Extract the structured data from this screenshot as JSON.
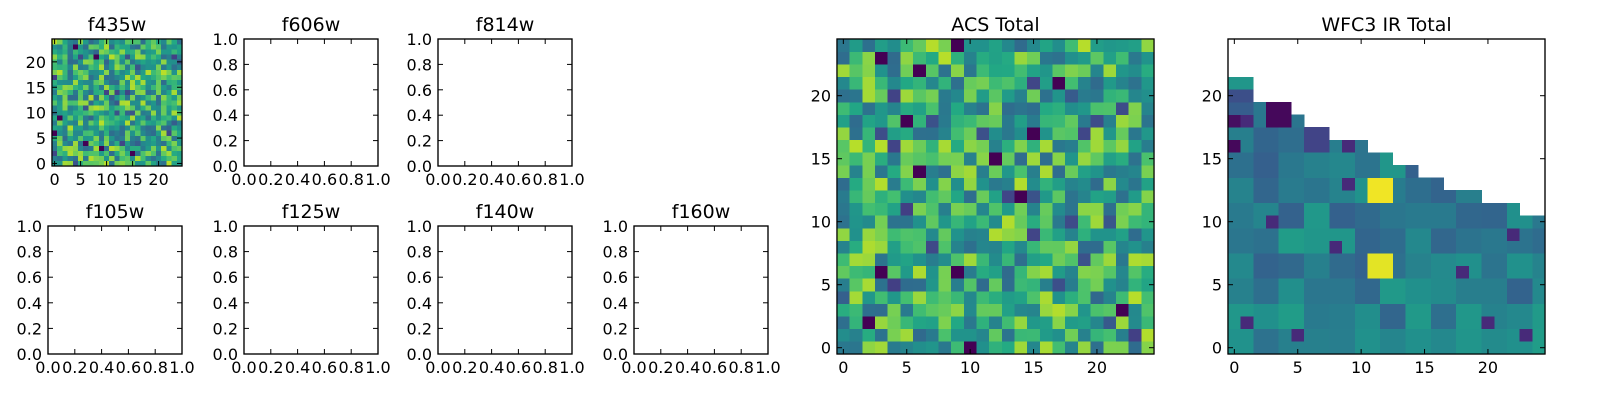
{
  "figure": {
    "colormap": "viridis",
    "colors": {
      "background": "#ffffff",
      "frame": "#000000",
      "cmap_low": "#440154",
      "cmap_mid": "#21908d",
      "cmap_high": "#fde725"
    }
  },
  "chart_data": [
    {
      "id": "f435w",
      "type": "heatmap",
      "title": "f435w",
      "xlabel": "",
      "ylabel": "",
      "xlim": [
        -0.5,
        24.5
      ],
      "ylim": [
        -0.5,
        24.5
      ],
      "grid": false,
      "xticks": [
        0,
        5,
        10,
        15,
        20
      ],
      "yticks": [
        0,
        5,
        10,
        15,
        20
      ],
      "xtick_labels": [
        "0",
        "5",
        "10",
        "15",
        "20"
      ],
      "ytick_labels": [
        "0",
        "5",
        "10",
        "15",
        "20"
      ],
      "value_range": [
        0,
        1
      ],
      "shape": [
        25,
        25
      ],
      "seed": 4351,
      "pattern": "noise",
      "cmap": "viridis"
    },
    {
      "id": "f606w",
      "type": "empty",
      "title": "f606w",
      "xlim": [
        0,
        1
      ],
      "ylim": [
        0,
        1
      ],
      "grid": false,
      "xticks": [
        0,
        0.2,
        0.4,
        0.6,
        0.8,
        1.0
      ],
      "yticks": [
        0,
        0.2,
        0.4,
        0.6,
        0.8,
        1.0
      ],
      "xtick_labels": [
        "0.0",
        "0.2",
        "0.4",
        "0.6",
        "0.8",
        "1.0"
      ],
      "ytick_labels": [
        "0.0",
        "0.2",
        "0.4",
        "0.6",
        "0.8",
        "1.0"
      ]
    },
    {
      "id": "f814w",
      "type": "empty",
      "title": "f814w",
      "xlim": [
        0,
        1
      ],
      "ylim": [
        0,
        1
      ],
      "grid": false,
      "xticks": [
        0,
        0.2,
        0.4,
        0.6,
        0.8,
        1.0
      ],
      "yticks": [
        0,
        0.2,
        0.4,
        0.6,
        0.8,
        1.0
      ],
      "xtick_labels": [
        "0.0",
        "0.2",
        "0.4",
        "0.6",
        "0.8",
        "1.0"
      ],
      "ytick_labels": [
        "0.0",
        "0.2",
        "0.4",
        "0.6",
        "0.8",
        "1.0"
      ]
    },
    {
      "id": "f105w",
      "type": "empty",
      "title": "f105w",
      "xlim": [
        0,
        1
      ],
      "ylim": [
        0,
        1
      ],
      "grid": false,
      "xticks": [
        0,
        0.2,
        0.4,
        0.6,
        0.8,
        1.0
      ],
      "yticks": [
        0,
        0.2,
        0.4,
        0.6,
        0.8,
        1.0
      ],
      "xtick_labels": [
        "0.0",
        "0.2",
        "0.4",
        "0.6",
        "0.8",
        "1.0"
      ],
      "ytick_labels": [
        "0.0",
        "0.2",
        "0.4",
        "0.6",
        "0.8",
        "1.0"
      ]
    },
    {
      "id": "f125w",
      "type": "empty",
      "title": "f125w",
      "xlim": [
        0,
        1
      ],
      "ylim": [
        0,
        1
      ],
      "grid": false,
      "xticks": [
        0,
        0.2,
        0.4,
        0.6,
        0.8,
        1.0
      ],
      "yticks": [
        0,
        0.2,
        0.4,
        0.6,
        0.8,
        1.0
      ],
      "xtick_labels": [
        "0.0",
        "0.2",
        "0.4",
        "0.6",
        "0.8",
        "1.0"
      ],
      "ytick_labels": [
        "0.0",
        "0.2",
        "0.4",
        "0.6",
        "0.8",
        "1.0"
      ]
    },
    {
      "id": "f140w",
      "type": "empty",
      "title": "f140w",
      "xlim": [
        0,
        1
      ],
      "ylim": [
        0,
        1
      ],
      "grid": false,
      "xticks": [
        0,
        0.2,
        0.4,
        0.6,
        0.8,
        1.0
      ],
      "yticks": [
        0,
        0.2,
        0.4,
        0.6,
        0.8,
        1.0
      ],
      "xtick_labels": [
        "0.0",
        "0.2",
        "0.4",
        "0.6",
        "0.8",
        "1.0"
      ],
      "ytick_labels": [
        "0.0",
        "0.2",
        "0.4",
        "0.6",
        "0.8",
        "1.0"
      ]
    },
    {
      "id": "f160w",
      "type": "empty",
      "title": "f160w",
      "xlim": [
        0,
        1
      ],
      "ylim": [
        0,
        1
      ],
      "grid": false,
      "xticks": [
        0,
        0.2,
        0.4,
        0.6,
        0.8,
        1.0
      ],
      "yticks": [
        0,
        0.2,
        0.4,
        0.6,
        0.8,
        1.0
      ],
      "xtick_labels": [
        "0.0",
        "0.2",
        "0.4",
        "0.6",
        "0.8",
        "1.0"
      ],
      "ytick_labels": [
        "0.0",
        "0.2",
        "0.4",
        "0.6",
        "0.8",
        "1.0"
      ]
    },
    {
      "id": "acs-total",
      "type": "heatmap",
      "title": "ACS Total",
      "xlabel": "",
      "ylabel": "",
      "xlim": [
        -0.5,
        24.5
      ],
      "ylim": [
        -0.5,
        24.5
      ],
      "grid": false,
      "xticks": [
        0,
        5,
        10,
        15,
        20
      ],
      "yticks": [
        0,
        5,
        10,
        15,
        20
      ],
      "xtick_labels": [
        "0",
        "5",
        "10",
        "15",
        "20"
      ],
      "ytick_labels": [
        "0",
        "5",
        "10",
        "15",
        "20"
      ],
      "value_range": [
        0,
        1
      ],
      "shape": [
        25,
        25
      ],
      "seed": 4352,
      "pattern": "noise",
      "cmap": "viridis"
    },
    {
      "id": "wfc3-ir-total",
      "type": "heatmap",
      "title": "WFC3 IR Total",
      "xlabel": "",
      "ylabel": "",
      "xlim": [
        -0.5,
        24.5
      ],
      "ylim": [
        -0.5,
        24.5
      ],
      "grid": false,
      "xticks": [
        0,
        5,
        10,
        15,
        20
      ],
      "yticks": [
        0,
        5,
        10,
        15,
        20
      ],
      "xtick_labels": [
        "0",
        "5",
        "10",
        "15",
        "20"
      ],
      "ytick_labels": [
        "0",
        "5",
        "10",
        "15",
        "20"
      ],
      "value_range": [
        0,
        1
      ],
      "shape": [
        25,
        25
      ],
      "seed": 7713,
      "pattern": "ir-wedge",
      "cmap": "viridis",
      "coverage_top_row_by_column": [
        21,
        21,
        19,
        19,
        18,
        18,
        17,
        17,
        16,
        16,
        16,
        15,
        15,
        14,
        14,
        13,
        13,
        12,
        12,
        12,
        11,
        11,
        11,
        10,
        10
      ],
      "bright_blocks": [
        {
          "x": [
            11,
            12
          ],
          "y": [
            12,
            13
          ],
          "value": 0.98
        },
        {
          "x": [
            11,
            12
          ],
          "y": [
            6,
            7
          ],
          "value": 0.96
        }
      ]
    }
  ]
}
